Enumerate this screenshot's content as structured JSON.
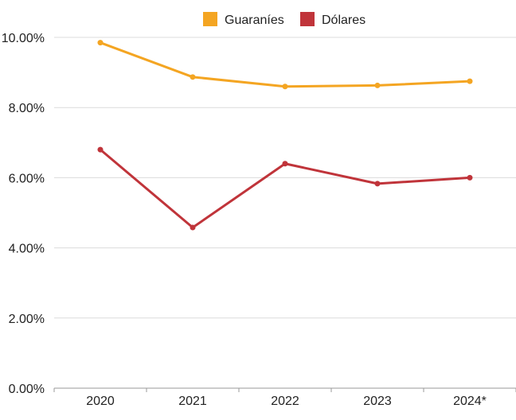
{
  "chart_data": {
    "type": "line",
    "title": "",
    "xlabel": "",
    "ylabel": "",
    "categories": [
      "2020",
      "2021",
      "2022",
      "2023",
      "2024*"
    ],
    "series": [
      {
        "name": "Guaraníes",
        "color": "#F4A522",
        "values": [
          9.85,
          8.87,
          8.6,
          8.63,
          8.75
        ]
      },
      {
        "name": "Dólares",
        "color": "#C0343A",
        "values": [
          6.8,
          4.58,
          6.4,
          5.83,
          6.0
        ]
      }
    ],
    "ylim": [
      0,
      10
    ],
    "yticks": [
      "0.00%",
      "2.00%",
      "4.00%",
      "6.00%",
      "8.00%",
      "10.00%"
    ],
    "ytick_values": [
      0,
      2,
      4,
      6,
      8,
      10
    ],
    "grid": true,
    "legend_position": "top-center"
  }
}
